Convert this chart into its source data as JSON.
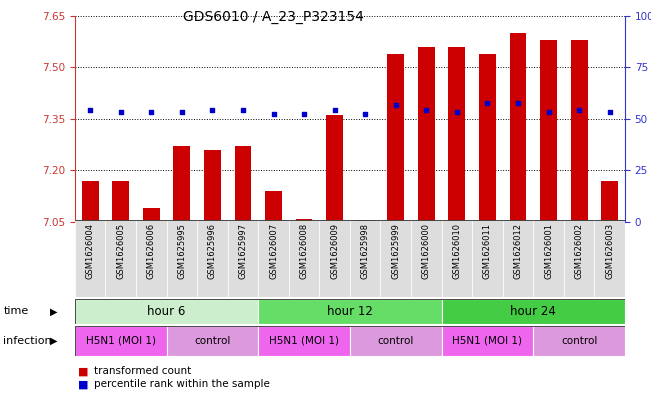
{
  "title": "GDS6010 / A_23_P323154",
  "samples": [
    "GSM1626004",
    "GSM1626005",
    "GSM1626006",
    "GSM1625995",
    "GSM1625996",
    "GSM1625997",
    "GSM1626007",
    "GSM1626008",
    "GSM1626009",
    "GSM1625998",
    "GSM1625999",
    "GSM1626000",
    "GSM1626010",
    "GSM1626011",
    "GSM1626012",
    "GSM1626001",
    "GSM1626002",
    "GSM1626003"
  ],
  "bar_values": [
    7.17,
    7.17,
    7.09,
    7.27,
    7.26,
    7.27,
    7.14,
    7.06,
    7.36,
    7.055,
    7.54,
    7.56,
    7.56,
    7.54,
    7.6,
    7.58,
    7.58,
    7.17
  ],
  "dot_values": [
    7.375,
    7.37,
    7.37,
    7.37,
    7.375,
    7.375,
    7.365,
    7.365,
    7.375,
    7.365,
    7.39,
    7.375,
    7.37,
    7.395,
    7.395,
    7.37,
    7.375,
    7.37
  ],
  "ymin": 7.05,
  "ymax": 7.65,
  "yticks": [
    7.05,
    7.2,
    7.35,
    7.5,
    7.65
  ],
  "right_yticks": [
    0,
    25,
    50,
    75,
    100
  ],
  "bar_color": "#cc0000",
  "dot_color": "#0000cc",
  "bar_width": 0.55,
  "time_groups": [
    {
      "label": "hour 6",
      "start": 0,
      "end": 6,
      "color": "#cceecc"
    },
    {
      "label": "hour 12",
      "start": 6,
      "end": 12,
      "color": "#66dd66"
    },
    {
      "label": "hour 24",
      "start": 12,
      "end": 18,
      "color": "#44cc44"
    }
  ],
  "infection_groups": [
    {
      "label": "H5N1 (MOI 1)",
      "start": 0,
      "end": 3,
      "type": "h5n1"
    },
    {
      "label": "control",
      "start": 3,
      "end": 6,
      "type": "ctrl"
    },
    {
      "label": "H5N1 (MOI 1)",
      "start": 6,
      "end": 9,
      "type": "h5n1"
    },
    {
      "label": "control",
      "start": 9,
      "end": 12,
      "type": "ctrl"
    },
    {
      "label": "H5N1 (MOI 1)",
      "start": 12,
      "end": 15,
      "type": "h5n1"
    },
    {
      "label": "control",
      "start": 15,
      "end": 18,
      "type": "ctrl"
    }
  ],
  "h5n1_color": "#ee66ee",
  "ctrl_color": "#dd99dd",
  "time_label": "time",
  "infection_label": "infection",
  "legend_bar": "transformed count",
  "legend_dot": "percentile rank within the sample",
  "left_axis_color": "#cc3333",
  "right_axis_color": "#3333cc"
}
